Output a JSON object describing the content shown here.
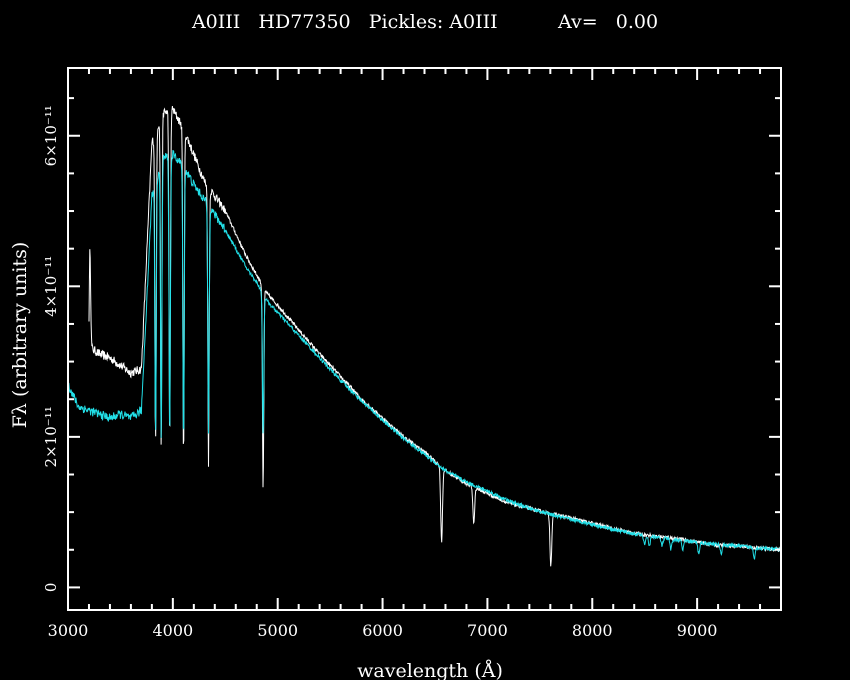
{
  "chart_data": {
    "type": "line",
    "title": "A0III   HD77350   Pickles: A0III          Av=   0.00",
    "xlabel": "wavelength (Å)",
    "ylabel": "Fλ (arbitrary units)",
    "xlim": [
      3000,
      9800
    ],
    "ylim": [
      -3e-12,
      6.9e-11
    ],
    "x_ticks": [
      3000,
      4000,
      5000,
      6000,
      7000,
      8000,
      9000
    ],
    "x_tick_labels": [
      "3000",
      "4000",
      "5000",
      "6000",
      "7000",
      "8000",
      "9000"
    ],
    "y_ticks": [
      0,
      2e-11,
      4e-11,
      6e-11
    ],
    "y_tick_labels": [
      "0",
      "2×10⁻¹¹",
      "4×10⁻¹¹",
      "6×10⁻¹¹"
    ],
    "colors": {
      "background": "#000000",
      "axes": "#ffffff",
      "observed": "#ffffff",
      "template": "#22e0e8"
    },
    "series": [
      {
        "color": "#ffffff",
        "continuum": [
          [
            3200,
            3.2e-11
          ],
          [
            3300,
            3.1e-11
          ],
          [
            3400,
            3.05e-11
          ],
          [
            3500,
            2.95e-11
          ],
          [
            3600,
            2.85e-11
          ],
          [
            3700,
            2.9e-11
          ],
          [
            3800,
            5.9e-11
          ],
          [
            3900,
            6.3e-11
          ],
          [
            4000,
            6.35e-11
          ],
          [
            4100,
            6.1e-11
          ],
          [
            4200,
            5.75e-11
          ],
          [
            4300,
            5.4e-11
          ],
          [
            4400,
            5.2e-11
          ],
          [
            4500,
            5e-11
          ],
          [
            4600,
            4.7e-11
          ],
          [
            4700,
            4.4e-11
          ],
          [
            4800,
            4.15e-11
          ],
          [
            4900,
            3.9e-11
          ],
          [
            5000,
            3.75e-11
          ],
          [
            5200,
            3.42e-11
          ],
          [
            5400,
            3.1e-11
          ],
          [
            5600,
            2.8e-11
          ],
          [
            5800,
            2.5e-11
          ],
          [
            6000,
            2.25e-11
          ],
          [
            6200,
            2e-11
          ],
          [
            6400,
            1.8e-11
          ],
          [
            6600,
            1.55e-11
          ],
          [
            6800,
            1.38e-11
          ],
          [
            7000,
            1.25e-11
          ],
          [
            7200,
            1.12e-11
          ],
          [
            7400,
            1.05e-11
          ],
          [
            7600,
            9.8e-12
          ],
          [
            7800,
            9.2e-12
          ],
          [
            8000,
            8.5e-12
          ],
          [
            8200,
            7.8e-12
          ],
          [
            8400,
            7.2e-12
          ],
          [
            8600,
            6.8e-12
          ],
          [
            8800,
            6.5e-12
          ],
          [
            9000,
            6e-12
          ],
          [
            9200,
            5.6e-12
          ],
          [
            9400,
            5.5e-12
          ],
          [
            9600,
            5.2e-12
          ],
          [
            9800,
            5e-12
          ]
        ],
        "lines": [
          [
            3210,
            4.5e-11,
            "spike"
          ],
          [
            3835,
            1.9e-11,
            "abs"
          ],
          [
            3889,
            1.8e-11,
            "abs"
          ],
          [
            3970,
            1.9e-11,
            "abs"
          ],
          [
            4102,
            1.75e-11,
            "abs"
          ],
          [
            4340,
            1.6e-11,
            "abs"
          ],
          [
            4861,
            1.3e-11,
            "abs"
          ],
          [
            6563,
            6e-12,
            "abs"
          ],
          [
            6870,
            8.5e-12,
            "abs"
          ],
          [
            7605,
            3e-12,
            "abs"
          ]
        ]
      },
      {
        "color": "#22e0e8",
        "continuum": [
          [
            3000,
            2.7e-11
          ],
          [
            3100,
            2.4e-11
          ],
          [
            3200,
            2.35e-11
          ],
          [
            3300,
            2.3e-11
          ],
          [
            3400,
            2.25e-11
          ],
          [
            3500,
            2.3e-11
          ],
          [
            3600,
            2.25e-11
          ],
          [
            3700,
            2.35e-11
          ],
          [
            3800,
            5.2e-11
          ],
          [
            3900,
            5.7e-11
          ],
          [
            4000,
            5.75e-11
          ],
          [
            4100,
            5.6e-11
          ],
          [
            4200,
            5.35e-11
          ],
          [
            4300,
            5.15e-11
          ],
          [
            4400,
            4.95e-11
          ],
          [
            4500,
            4.75e-11
          ],
          [
            4600,
            4.5e-11
          ],
          [
            4700,
            4.25e-11
          ],
          [
            4800,
            4.05e-11
          ],
          [
            4900,
            3.8e-11
          ],
          [
            5000,
            3.65e-11
          ],
          [
            5200,
            3.35e-11
          ],
          [
            5400,
            3.05e-11
          ],
          [
            5600,
            2.75e-11
          ],
          [
            5800,
            2.48e-11
          ],
          [
            6000,
            2.22e-11
          ],
          [
            6200,
            1.98e-11
          ],
          [
            6400,
            1.77e-11
          ],
          [
            6600,
            1.55e-11
          ],
          [
            6800,
            1.4e-11
          ],
          [
            7000,
            1.28e-11
          ],
          [
            7200,
            1.15e-11
          ],
          [
            7400,
            1.05e-11
          ],
          [
            7600,
            9.7e-12
          ],
          [
            7800,
            9e-12
          ],
          [
            8000,
            8.4e-12
          ],
          [
            8200,
            7.7e-12
          ],
          [
            8400,
            7.1e-12
          ],
          [
            8600,
            6.7e-12
          ],
          [
            8800,
            6.3e-12
          ],
          [
            9000,
            6e-12
          ],
          [
            9200,
            5.7e-12
          ],
          [
            9400,
            5.5e-12
          ],
          [
            9600,
            5.2e-12
          ],
          [
            9800,
            5e-12
          ]
        ],
        "lines": [
          [
            3835,
            2e-11,
            "abs"
          ],
          [
            3889,
            1.95e-11,
            "abs"
          ],
          [
            3970,
            2e-11,
            "abs"
          ],
          [
            4102,
            2e-11,
            "abs"
          ],
          [
            4340,
            2.1e-11,
            "abs"
          ],
          [
            4861,
            2e-11,
            "abs"
          ],
          [
            8500,
            5.5e-12,
            "abs"
          ],
          [
            8545,
            5.5e-12,
            "abs"
          ],
          [
            8665,
            5.5e-12,
            "abs"
          ],
          [
            8750,
            5e-12,
            "abs"
          ],
          [
            8863,
            5e-12,
            "abs"
          ],
          [
            9015,
            4.5e-12,
            "abs"
          ],
          [
            9229,
            4.5e-12,
            "abs"
          ],
          [
            9546,
            4e-12,
            "abs"
          ]
        ]
      }
    ]
  }
}
